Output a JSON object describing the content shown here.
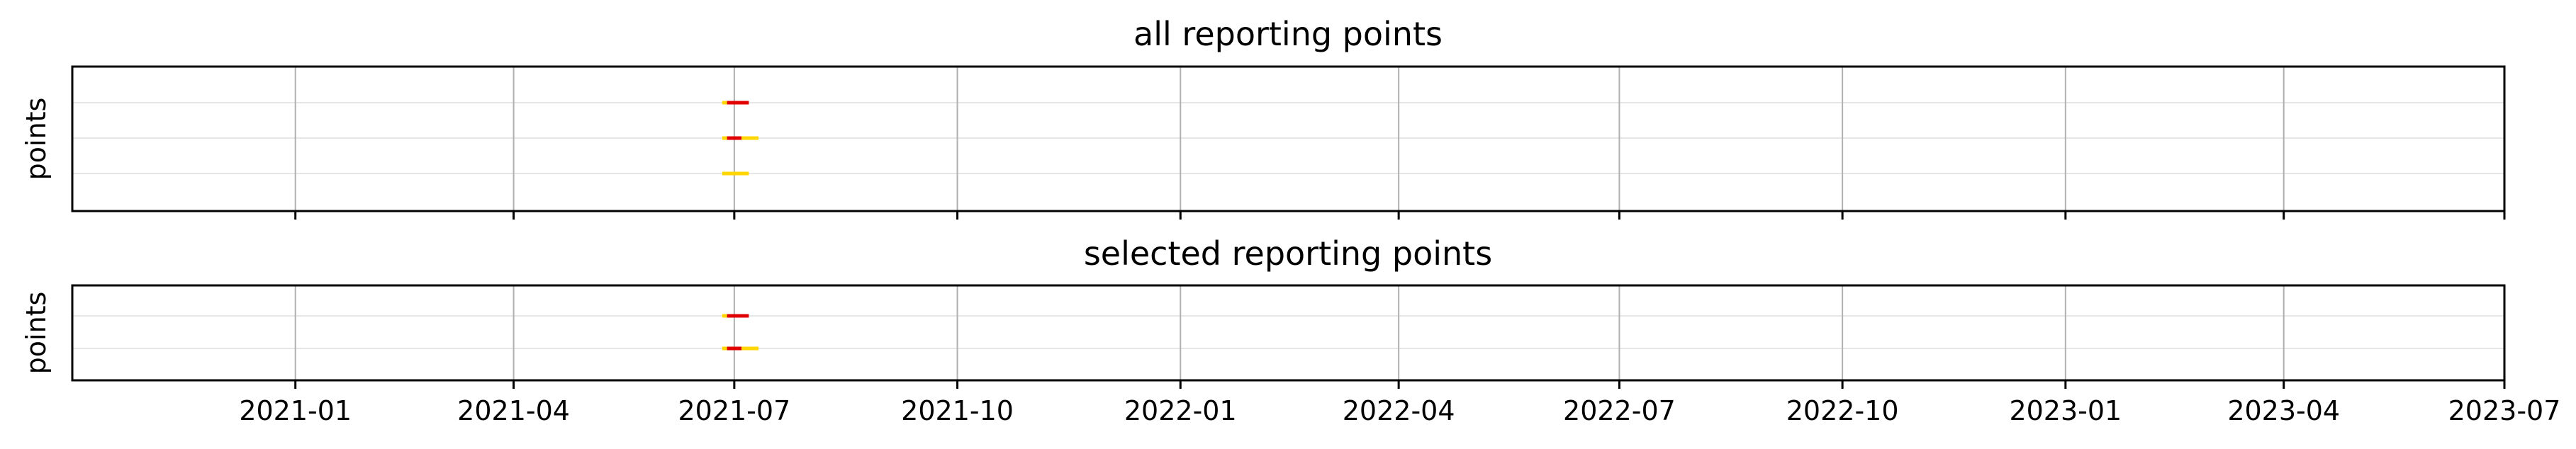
{
  "chart_data": [
    {
      "type": "timeline",
      "title": "all reporting points",
      "ylabel": "points",
      "xlim": [
        "2020-10-01",
        "2023-07-01"
      ],
      "x_ticks": [
        "2021-01",
        "2021-04",
        "2021-07",
        "2021-10",
        "2022-01",
        "2022-04",
        "2022-07",
        "2022-10",
        "2023-01",
        "2023-04",
        "2023-07"
      ],
      "show_x_tick_labels": false,
      "grid": true,
      "rows": [
        {
          "segments": [
            {
              "start": "2021-06-26",
              "end": "2021-06-28",
              "color": "#ffd700"
            },
            {
              "start": "2021-06-28",
              "end": "2021-07-07",
              "color": "#e00000"
            }
          ]
        },
        {
          "segments": [
            {
              "start": "2021-06-26",
              "end": "2021-06-28",
              "color": "#ffd700"
            },
            {
              "start": "2021-06-28",
              "end": "2021-07-04",
              "color": "#e00000"
            },
            {
              "start": "2021-07-04",
              "end": "2021-07-11",
              "color": "#ffd700"
            }
          ]
        },
        {
          "segments": [
            {
              "start": "2021-06-26",
              "end": "2021-07-07",
              "color": "#ffd700"
            }
          ]
        }
      ]
    },
    {
      "type": "timeline",
      "title": "selected reporting points",
      "ylabel": "points",
      "xlim": [
        "2020-10-01",
        "2023-07-01"
      ],
      "x_ticks": [
        "2021-01",
        "2021-04",
        "2021-07",
        "2021-10",
        "2022-01",
        "2022-04",
        "2022-07",
        "2022-10",
        "2023-01",
        "2023-04",
        "2023-07"
      ],
      "show_x_tick_labels": true,
      "grid": true,
      "rows": [
        {
          "segments": [
            {
              "start": "2021-06-26",
              "end": "2021-06-28",
              "color": "#ffd700"
            },
            {
              "start": "2021-06-28",
              "end": "2021-07-07",
              "color": "#e00000"
            }
          ]
        },
        {
          "segments": [
            {
              "start": "2021-06-26",
              "end": "2021-06-28",
              "color": "#ffd700"
            },
            {
              "start": "2021-06-28",
              "end": "2021-07-04",
              "color": "#e00000"
            },
            {
              "start": "2021-07-04",
              "end": "2021-07-11",
              "color": "#ffd700"
            }
          ]
        }
      ]
    }
  ]
}
